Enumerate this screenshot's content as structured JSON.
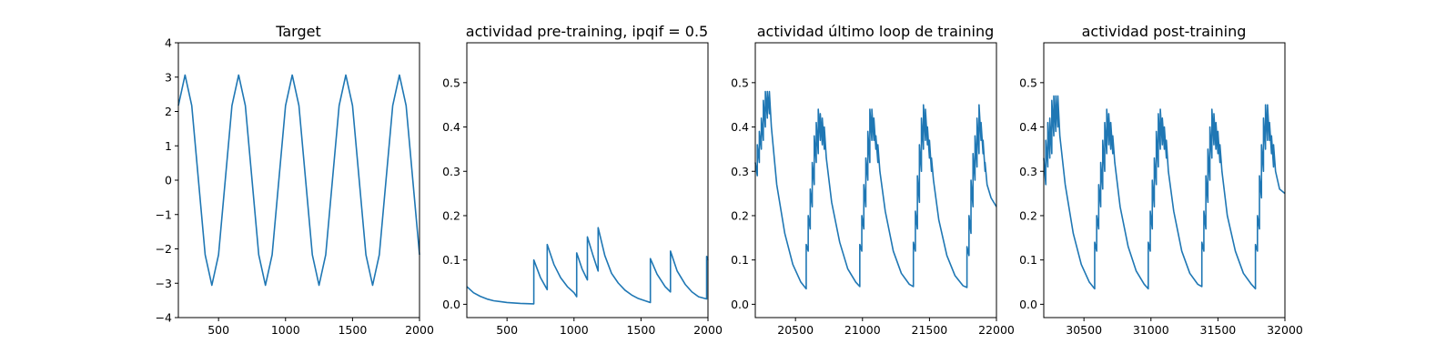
{
  "accent_color": "#1f77b4",
  "chart_data": [
    {
      "type": "line",
      "title": "Target",
      "xlabel": "",
      "ylabel": "",
      "xlim": [
        200,
        2000
      ],
      "ylim": [
        -4,
        4
      ],
      "xticks": [
        500,
        1000,
        1500,
        2000
      ],
      "xtick_labels": [
        "500",
        "1000",
        "1500",
        "2000"
      ],
      "yticks": [
        -4,
        -3,
        -2,
        -1,
        0,
        1,
        2,
        3,
        4
      ],
      "ytick_labels": [
        "−4",
        "−3",
        "−2",
        "−1",
        "0",
        "1",
        "2",
        "3",
        "4"
      ],
      "grid": false,
      "series": [
        {
          "color": "#1f77b4",
          "x": [
            200,
            250,
            300,
            350,
            400,
            450,
            500,
            550,
            600,
            650,
            700,
            750,
            800,
            850,
            900,
            950,
            1000,
            1050,
            1100,
            1150,
            1200,
            1250,
            1300,
            1350,
            1400,
            1450,
            1500,
            1550,
            1600,
            1650,
            1700,
            1750,
            1800,
            1850,
            1900,
            1950,
            2000
          ],
          "y": [
            2.17,
            3.06,
            2.17,
            0.0,
            -2.17,
            -3.06,
            -2.17,
            0.0,
            2.17,
            3.06,
            2.17,
            0.0,
            -2.17,
            -3.06,
            -2.17,
            0.0,
            2.17,
            3.06,
            2.17,
            0.0,
            -2.17,
            -3.06,
            -2.17,
            0.0,
            2.17,
            3.06,
            2.17,
            0.0,
            -2.17,
            -3.06,
            -2.17,
            0.0,
            2.17,
            3.06,
            2.17,
            0.0,
            -2.17
          ]
        }
      ]
    },
    {
      "type": "line",
      "title": "actividad pre-training, ipqif = 0.5",
      "xlabel": "",
      "ylabel": "",
      "xlim": [
        200,
        2000
      ],
      "ylim": [
        -0.03,
        0.59
      ],
      "xticks": [
        500,
        1000,
        1500,
        2000
      ],
      "xtick_labels": [
        "500",
        "1000",
        "1500",
        "2000"
      ],
      "yticks": [
        0.0,
        0.1,
        0.2,
        0.3,
        0.4,
        0.5
      ],
      "ytick_labels": [
        "0.0",
        "0.1",
        "0.2",
        "0.3",
        "0.4",
        "0.5"
      ],
      "grid": false,
      "series": [
        {
          "color": "#1f77b4",
          "x": [
            200,
            250,
            300,
            350,
            400,
            450,
            500,
            550,
            600,
            650,
            700,
            700,
            750,
            800,
            800,
            850,
            900,
            950,
            1000,
            1020,
            1020,
            1060,
            1100,
            1100,
            1140,
            1180,
            1180,
            1230,
            1280,
            1330,
            1380,
            1430,
            1480,
            1530,
            1570,
            1570,
            1620,
            1680,
            1720,
            1720,
            1770,
            1830,
            1880,
            1930,
            1990,
            1990,
            2000
          ],
          "y": [
            0.04,
            0.026,
            0.018,
            0.012,
            0.008,
            0.006,
            0.004,
            0.003,
            0.002,
            0.0015,
            0.001,
            0.1,
            0.06,
            0.033,
            0.135,
            0.09,
            0.06,
            0.04,
            0.026,
            0.017,
            0.116,
            0.08,
            0.055,
            0.152,
            0.112,
            0.075,
            0.173,
            0.11,
            0.07,
            0.048,
            0.032,
            0.021,
            0.013,
            0.008,
            0.004,
            0.103,
            0.068,
            0.04,
            0.028,
            0.12,
            0.075,
            0.045,
            0.028,
            0.017,
            0.012,
            0.108,
            0.1
          ]
        }
      ]
    },
    {
      "type": "line",
      "title": "actividad último loop de training",
      "xlabel": "",
      "ylabel": "",
      "xlim": [
        20200,
        22000
      ],
      "ylim": [
        -0.03,
        0.59
      ],
      "xticks": [
        20500,
        21000,
        21500,
        22000
      ],
      "xtick_labels": [
        "20500",
        "21000",
        "21500",
        "22000"
      ],
      "yticks": [
        0.0,
        0.1,
        0.2,
        0.3,
        0.4,
        0.5
      ],
      "ytick_labels": [
        "0.0",
        "0.1",
        "0.2",
        "0.3",
        "0.4",
        "0.5"
      ],
      "grid": false,
      "series": [
        {
          "color": "#1f77b4",
          "x": [
            20200,
            20215,
            20215,
            20230,
            20230,
            20245,
            20245,
            20260,
            20260,
            20275,
            20275,
            20290,
            20290,
            20305,
            20305,
            20320,
            20360,
            20420,
            20480,
            20540,
            20580,
            20580,
            20595,
            20595,
            20610,
            20610,
            20625,
            20625,
            20640,
            20640,
            20655,
            20655,
            20670,
            20670,
            20685,
            20685,
            20700,
            20700,
            20715,
            20715,
            20730,
            20770,
            20830,
            20890,
            20950,
            20980,
            20980,
            20995,
            20995,
            21010,
            21010,
            21025,
            21025,
            21040,
            21040,
            21055,
            21055,
            21070,
            21070,
            21085,
            21085,
            21100,
            21100,
            21115,
            21115,
            21130,
            21170,
            21230,
            21290,
            21350,
            21380,
            21380,
            21395,
            21395,
            21410,
            21410,
            21425,
            21425,
            21440,
            21440,
            21455,
            21455,
            21470,
            21470,
            21485,
            21485,
            21500,
            21500,
            21515,
            21515,
            21530,
            21570,
            21630,
            21690,
            21750,
            21780,
            21780,
            21795,
            21795,
            21810,
            21810,
            21825,
            21825,
            21840,
            21840,
            21855,
            21855,
            21870,
            21870,
            21885,
            21885,
            21900,
            21900,
            21915,
            21915,
            21930,
            21960,
            22000
          ],
          "y": [
            0.32,
            0.29,
            0.36,
            0.32,
            0.39,
            0.35,
            0.42,
            0.37,
            0.46,
            0.4,
            0.48,
            0.42,
            0.48,
            0.43,
            0.48,
            0.4,
            0.27,
            0.16,
            0.09,
            0.05,
            0.035,
            0.135,
            0.12,
            0.2,
            0.17,
            0.26,
            0.22,
            0.32,
            0.27,
            0.38,
            0.32,
            0.41,
            0.34,
            0.44,
            0.37,
            0.43,
            0.36,
            0.42,
            0.35,
            0.4,
            0.33,
            0.23,
            0.14,
            0.08,
            0.05,
            0.04,
            0.135,
            0.12,
            0.2,
            0.17,
            0.27,
            0.22,
            0.33,
            0.28,
            0.39,
            0.32,
            0.44,
            0.37,
            0.44,
            0.37,
            0.42,
            0.35,
            0.38,
            0.32,
            0.36,
            0.3,
            0.21,
            0.12,
            0.07,
            0.045,
            0.04,
            0.14,
            0.12,
            0.21,
            0.17,
            0.29,
            0.23,
            0.36,
            0.3,
            0.42,
            0.35,
            0.45,
            0.37,
            0.44,
            0.36,
            0.4,
            0.33,
            0.37,
            0.3,
            0.33,
            0.28,
            0.19,
            0.11,
            0.065,
            0.042,
            0.038,
            0.13,
            0.11,
            0.2,
            0.16,
            0.28,
            0.22,
            0.34,
            0.28,
            0.38,
            0.31,
            0.42,
            0.34,
            0.45,
            0.37,
            0.41,
            0.34,
            0.37,
            0.3,
            0.32,
            0.27,
            0.24,
            0.22
          ]
        }
      ]
    },
    {
      "type": "line",
      "title": "actividad post-training",
      "xlabel": "",
      "ylabel": "",
      "xlim": [
        30200,
        32000
      ],
      "ylim": [
        -0.03,
        0.59
      ],
      "xticks": [
        30500,
        31000,
        31500,
        32000
      ],
      "xtick_labels": [
        "30500",
        "31000",
        "31500",
        "32000"
      ],
      "yticks": [
        0.0,
        0.1,
        0.2,
        0.3,
        0.4,
        0.5
      ],
      "ytick_labels": [
        "0.0",
        "0.1",
        "0.2",
        "0.3",
        "0.4",
        "0.5"
      ],
      "grid": false,
      "series": [
        {
          "color": "#1f77b4",
          "x": [
            30200,
            30215,
            30215,
            30230,
            30230,
            30245,
            30245,
            30260,
            30260,
            30275,
            30275,
            30290,
            30290,
            30305,
            30305,
            30320,
            30360,
            30420,
            30480,
            30540,
            30580,
            30580,
            30595,
            30595,
            30610,
            30610,
            30625,
            30625,
            30640,
            30640,
            30655,
            30655,
            30670,
            30670,
            30685,
            30685,
            30700,
            30700,
            30715,
            30715,
            30730,
            30770,
            30830,
            30890,
            30950,
            30980,
            30980,
            30995,
            30995,
            31010,
            31010,
            31025,
            31025,
            31040,
            31040,
            31055,
            31055,
            31070,
            31070,
            31085,
            31085,
            31100,
            31100,
            31115,
            31115,
            31130,
            31170,
            31230,
            31290,
            31350,
            31380,
            31380,
            31395,
            31395,
            31410,
            31410,
            31425,
            31425,
            31440,
            31440,
            31455,
            31455,
            31470,
            31470,
            31485,
            31485,
            31500,
            31500,
            31515,
            31515,
            31530,
            31570,
            31630,
            31690,
            31750,
            31780,
            31780,
            31795,
            31795,
            31810,
            31810,
            31825,
            31825,
            31840,
            31840,
            31855,
            31855,
            31870,
            31870,
            31885,
            31885,
            31900,
            31900,
            31915,
            31915,
            31930,
            31960,
            32000
          ],
          "y": [
            0.33,
            0.27,
            0.37,
            0.31,
            0.41,
            0.33,
            0.42,
            0.34,
            0.46,
            0.38,
            0.47,
            0.39,
            0.47,
            0.4,
            0.47,
            0.38,
            0.27,
            0.16,
            0.09,
            0.05,
            0.035,
            0.14,
            0.12,
            0.2,
            0.17,
            0.27,
            0.22,
            0.32,
            0.26,
            0.37,
            0.3,
            0.41,
            0.34,
            0.44,
            0.36,
            0.43,
            0.35,
            0.41,
            0.34,
            0.38,
            0.32,
            0.22,
            0.13,
            0.075,
            0.045,
            0.035,
            0.14,
            0.12,
            0.21,
            0.17,
            0.28,
            0.22,
            0.33,
            0.27,
            0.39,
            0.31,
            0.43,
            0.35,
            0.44,
            0.36,
            0.42,
            0.35,
            0.4,
            0.33,
            0.37,
            0.3,
            0.21,
            0.12,
            0.07,
            0.045,
            0.04,
            0.14,
            0.12,
            0.21,
            0.17,
            0.29,
            0.23,
            0.35,
            0.28,
            0.4,
            0.33,
            0.44,
            0.36,
            0.43,
            0.35,
            0.41,
            0.34,
            0.39,
            0.32,
            0.36,
            0.3,
            0.2,
            0.12,
            0.07,
            0.045,
            0.035,
            0.135,
            0.12,
            0.2,
            0.17,
            0.29,
            0.24,
            0.36,
            0.3,
            0.42,
            0.35,
            0.45,
            0.37,
            0.45,
            0.37,
            0.41,
            0.34,
            0.38,
            0.31,
            0.36,
            0.3,
            0.26,
            0.25
          ]
        }
      ]
    }
  ]
}
